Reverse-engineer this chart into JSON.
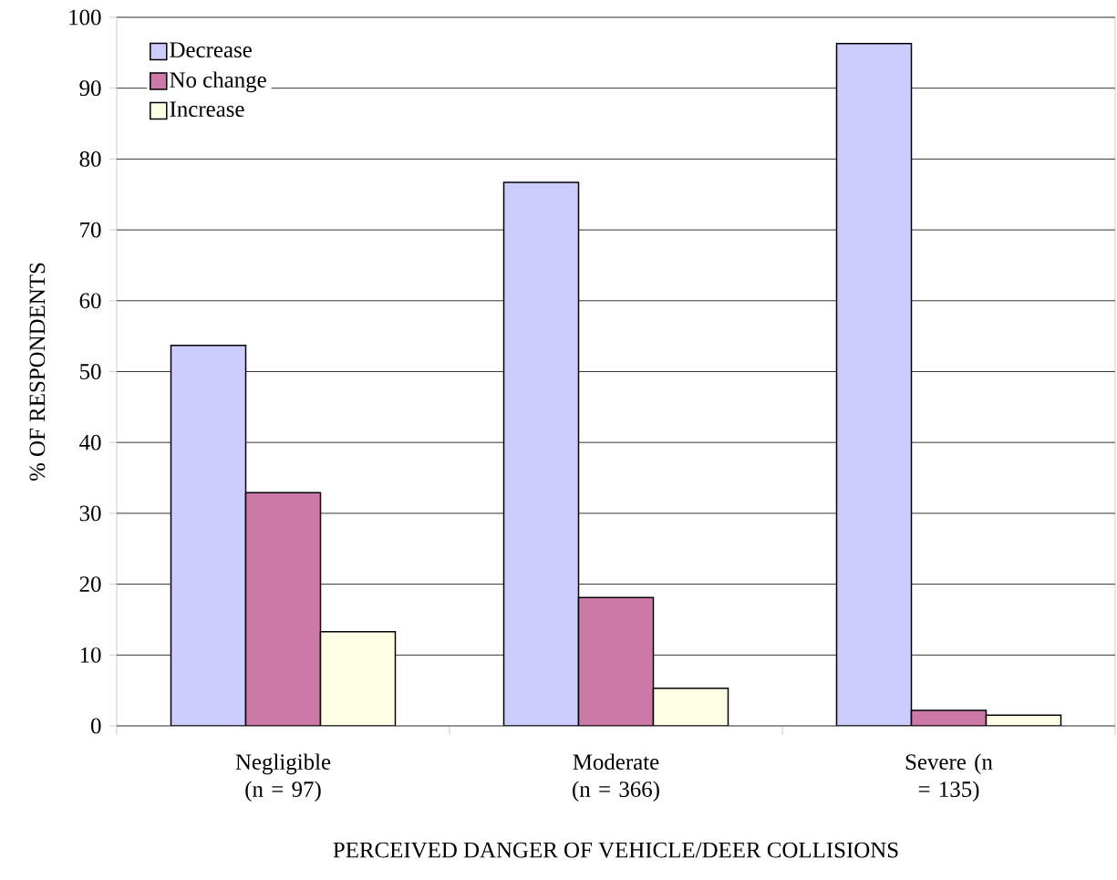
{
  "chart_data": {
    "type": "bar",
    "categories": [
      "Negligible (n = 97)",
      "Moderate (n = 366)",
      "Severe (n = 135)"
    ],
    "xlabel": "PERCEIVED DANGER OF VEHICLE/DEER COLLISIONS",
    "ylabel": "% OF RESPONDENTS",
    "series": [
      {
        "name": "Decrease",
        "color": "#ccccff",
        "values": [
          53.7,
          76.7,
          96.3
        ]
      },
      {
        "name": "No change",
        "color": "#cc79a7",
        "values": [
          32.9,
          18.1,
          2.2
        ]
      },
      {
        "name": "Increase",
        "color": "#ffffe6",
        "values": [
          13.3,
          5.3,
          1.5
        ]
      }
    ],
    "ylim": [
      0,
      100
    ],
    "yticks": [
      0,
      10,
      20,
      30,
      40,
      50,
      60,
      70,
      80,
      90,
      100
    ],
    "grid": "y",
    "legend": "top left"
  }
}
